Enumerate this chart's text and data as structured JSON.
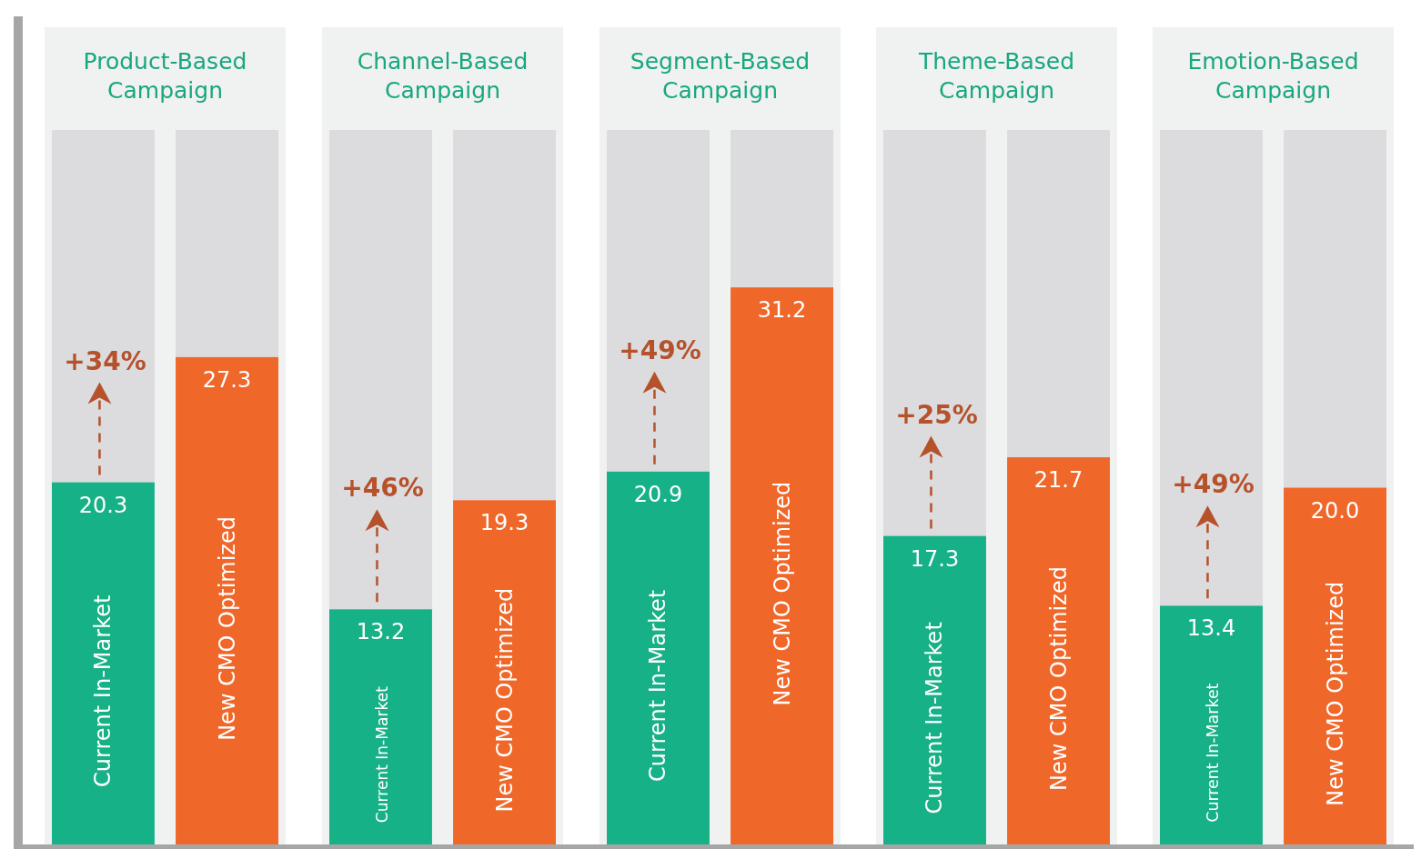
{
  "chart_data": [
    {
      "type": "bar",
      "title": "Product-Based Campaign",
      "categories": [
        null
      ],
      "ylim": [
        0,
        40
      ],
      "annotations": [
        "+34%"
      ],
      "series": [
        {
          "name": "Current In-Market",
          "color": "#17b187",
          "values": [
            20.3
          ],
          "value_labels": [
            "20.3"
          ]
        },
        {
          "name": "New CMO Optimized",
          "color": "#f0672a",
          "values": [
            27.3
          ],
          "value_labels": [
            "27.3"
          ]
        }
      ]
    },
    {
      "type": "bar",
      "title": "Channel-Based Campaign",
      "categories": [
        null
      ],
      "ylim": [
        0,
        40
      ],
      "annotations": [
        "+46%"
      ],
      "series": [
        {
          "name": "Current In-Market",
          "color": "#17b187",
          "values": [
            13.2
          ],
          "value_labels": [
            "13.2"
          ]
        },
        {
          "name": "New CMO Optimized",
          "color": "#f0672a",
          "values": [
            19.3
          ],
          "value_labels": [
            "19.3"
          ]
        }
      ]
    },
    {
      "type": "bar",
      "title": "Segment-Based Campaign",
      "categories": [
        null
      ],
      "ylim": [
        0,
        40
      ],
      "annotations": [
        "+49%"
      ],
      "series": [
        {
          "name": "Current In-Market",
          "color": "#17b187",
          "values": [
            20.9
          ],
          "value_labels": [
            "20.9"
          ]
        },
        {
          "name": "New CMO Optimized",
          "color": "#f0672a",
          "values": [
            31.2
          ],
          "value_labels": [
            "31.2"
          ]
        }
      ]
    },
    {
      "type": "bar",
      "title": "Theme-Based Campaign",
      "categories": [
        null
      ],
      "ylim": [
        0,
        40
      ],
      "annotations": [
        "+25%"
      ],
      "series": [
        {
          "name": "Current In-Market",
          "color": "#17b187",
          "values": [
            17.3
          ],
          "value_labels": [
            "17.3"
          ]
        },
        {
          "name": "New CMO Optimized",
          "color": "#f0672a",
          "values": [
            21.7
          ],
          "value_labels": [
            "21.7"
          ]
        }
      ]
    },
    {
      "type": "bar",
      "title": "Emotion-Based Campaign",
      "categories": [
        null
      ],
      "ylim": [
        0,
        40
      ],
      "annotations": [
        "+49%"
      ],
      "series": [
        {
          "name": "Current In-Market",
          "color": "#17b187",
          "values": [
            13.4
          ],
          "value_labels": [
            "13.4"
          ]
        },
        {
          "name": "New CMO Optimized",
          "color": "#f0672a",
          "values": [
            20.0
          ],
          "value_labels": [
            "20.0"
          ]
        }
      ]
    }
  ]
}
